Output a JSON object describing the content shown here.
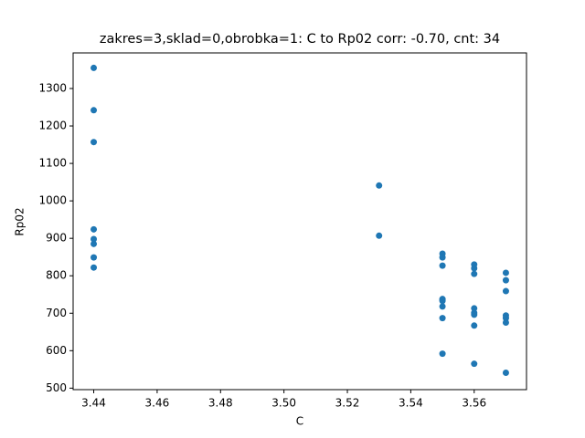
{
  "chart_data": {
    "type": "scatter",
    "title": "zakres=3,sklad=0,obrobka=1: C to Rp02 corr: -0.70, cnt: 34",
    "x_label": "C",
    "y_label": "Rp02",
    "color": "#1f77b4",
    "x": [
      3.44,
      3.44,
      3.44,
      3.44,
      3.44,
      3.44,
      3.44,
      3.44,
      3.53,
      3.53,
      3.55,
      3.55,
      3.55,
      3.55,
      3.55,
      3.55,
      3.55,
      3.55,
      3.55,
      3.56,
      3.56,
      3.56,
      3.56,
      3.56,
      3.56,
      3.56,
      3.56,
      3.57,
      3.57,
      3.57,
      3.57,
      3.57,
      3.57,
      3.57
    ],
    "values": [
      1355,
      1242,
      1157,
      924,
      898,
      885,
      849,
      822,
      1041,
      907,
      859,
      849,
      827,
      738,
      736,
      733,
      718,
      687,
      592,
      830,
      820,
      805,
      713,
      701,
      696,
      667,
      565,
      808,
      788,
      759,
      694,
      687,
      675,
      541
    ],
    "xlim": [
      3.4335,
      3.5765
    ],
    "ylim": [
      496,
      1395
    ],
    "xticks": [
      3.44,
      3.46,
      3.48,
      {
        "value": 3.5,
        "label": "3.50"
      },
      3.52,
      3.54,
      3.56
    ],
    "yticks": [
      500,
      600,
      700,
      800,
      900,
      1000,
      1100,
      1200,
      1300
    ]
  }
}
